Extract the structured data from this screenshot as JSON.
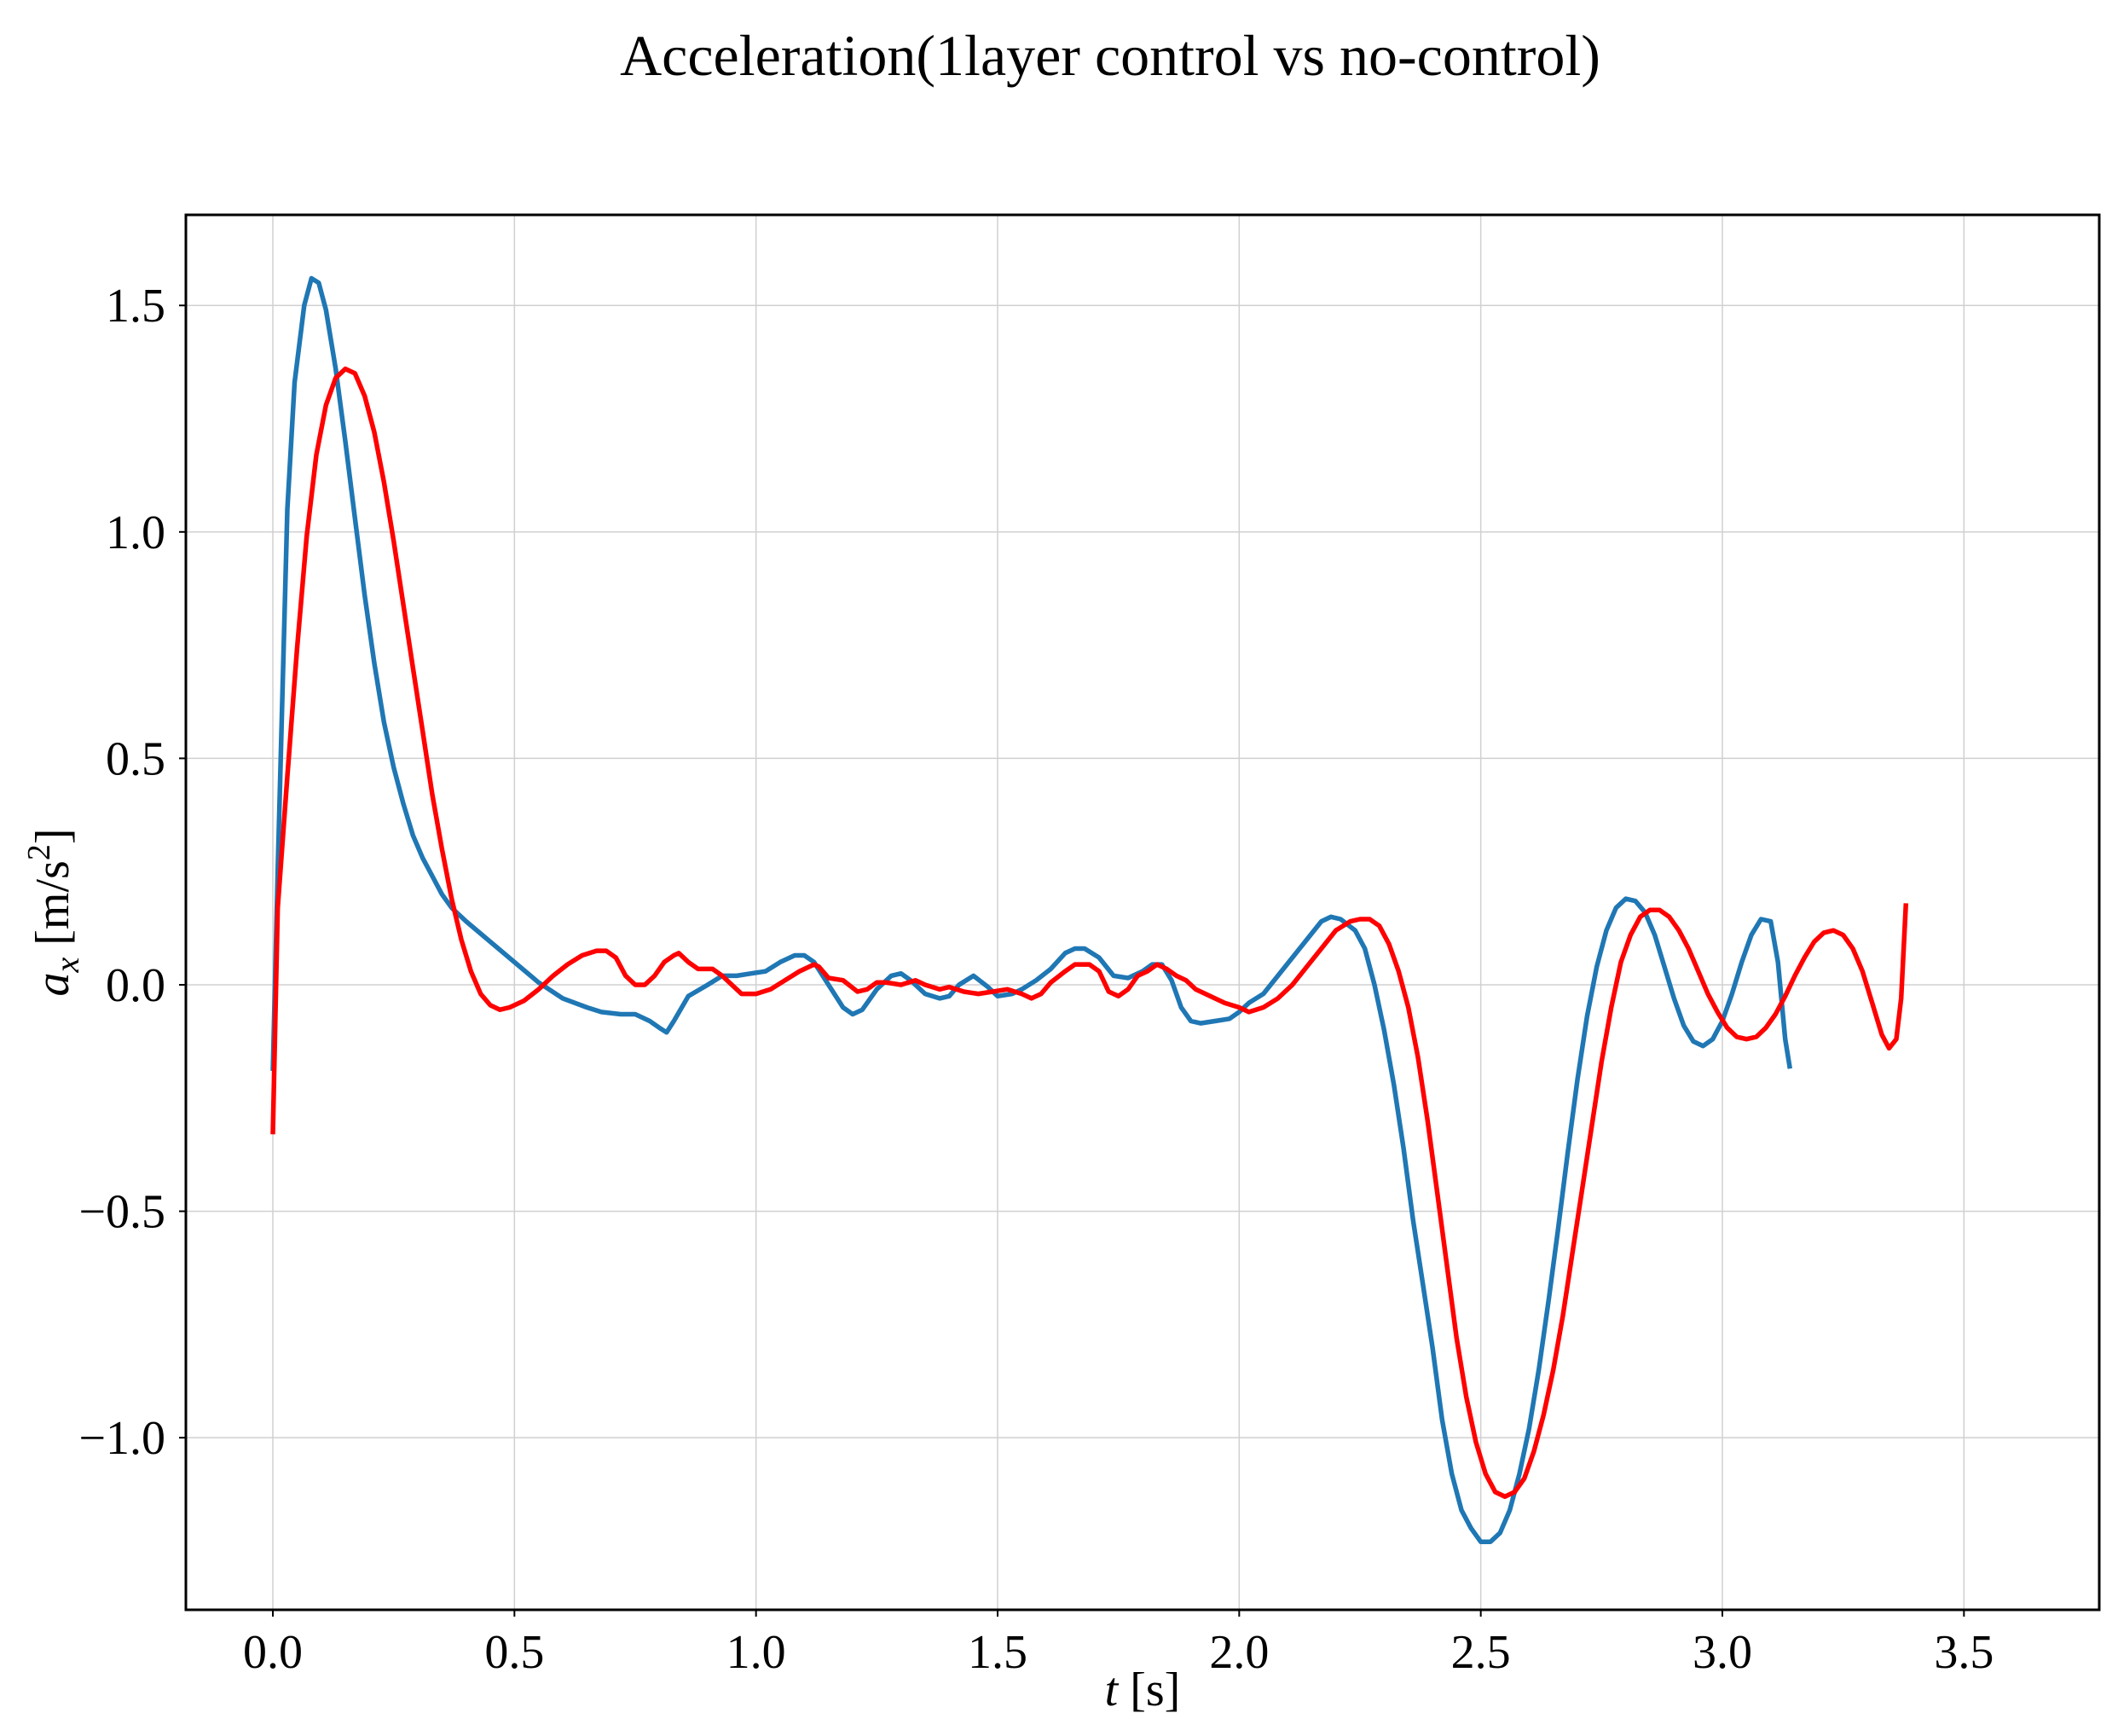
{
  "chart_data": {
    "type": "line",
    "title": "Acceleration(1layer control vs no-control)",
    "xlabel": {
      "var": "t",
      "unit": "[s]"
    },
    "ylabel": {
      "var": "a",
      "sub": "x",
      "unit_pre": "[m/s",
      "unit_sup": "2",
      "unit_post": "]"
    },
    "xlim": [
      -0.18,
      3.78
    ],
    "ylim": [
      -1.38,
      1.7
    ],
    "xticks": [
      0.0,
      0.5,
      1.0,
      1.5,
      2.0,
      2.5,
      3.0,
      3.5
    ],
    "xtick_labels": [
      "0.0",
      "0.5",
      "1.0",
      "1.5",
      "2.0",
      "2.5",
      "3.0",
      "3.5"
    ],
    "yticks": [
      1.5,
      1.0,
      0.5,
      0.0,
      -0.5,
      -1.0
    ],
    "ytick_labels": [
      "1.5",
      "1.0",
      "0.5",
      "0.0",
      "−0.5",
      "−1.0"
    ],
    "grid": true,
    "legend": "none",
    "series": [
      {
        "color": "#1f77b4",
        "points": [
          [
            0.0,
            -0.19
          ],
          [
            0.01,
            0.25
          ],
          [
            0.03,
            1.05
          ],
          [
            0.045,
            1.33
          ],
          [
            0.065,
            1.5
          ],
          [
            0.08,
            1.56
          ],
          [
            0.095,
            1.55
          ],
          [
            0.11,
            1.49
          ],
          [
            0.13,
            1.36
          ],
          [
            0.15,
            1.2
          ],
          [
            0.17,
            1.03
          ],
          [
            0.19,
            0.86
          ],
          [
            0.21,
            0.71
          ],
          [
            0.23,
            0.58
          ],
          [
            0.25,
            0.48
          ],
          [
            0.27,
            0.4
          ],
          [
            0.29,
            0.33
          ],
          [
            0.31,
            0.28
          ],
          [
            0.33,
            0.24
          ],
          [
            0.35,
            0.2
          ],
          [
            0.37,
            0.17
          ],
          [
            0.4,
            0.14
          ],
          [
            0.45,
            0.095
          ],
          [
            0.5,
            0.05
          ],
          [
            0.55,
            0.005
          ],
          [
            0.6,
            -0.03
          ],
          [
            0.65,
            -0.05
          ],
          [
            0.68,
            -0.06
          ],
          [
            0.72,
            -0.065
          ],
          [
            0.75,
            -0.065
          ],
          [
            0.78,
            -0.08
          ],
          [
            0.8,
            -0.095
          ],
          [
            0.815,
            -0.105
          ],
          [
            0.83,
            -0.08
          ],
          [
            0.86,
            -0.025
          ],
          [
            0.9,
            0.0
          ],
          [
            0.93,
            0.02
          ],
          [
            0.96,
            0.02
          ],
          [
            0.99,
            0.025
          ],
          [
            1.02,
            0.03
          ],
          [
            1.05,
            0.05
          ],
          [
            1.08,
            0.065
          ],
          [
            1.1,
            0.065
          ],
          [
            1.12,
            0.05
          ],
          [
            1.15,
            0.0
          ],
          [
            1.18,
            -0.05
          ],
          [
            1.2,
            -0.065
          ],
          [
            1.22,
            -0.055
          ],
          [
            1.25,
            -0.01
          ],
          [
            1.28,
            0.02
          ],
          [
            1.3,
            0.025
          ],
          [
            1.32,
            0.01
          ],
          [
            1.35,
            -0.02
          ],
          [
            1.38,
            -0.03
          ],
          [
            1.4,
            -0.025
          ],
          [
            1.42,
            0.0
          ],
          [
            1.45,
            0.02
          ],
          [
            1.48,
            -0.005
          ],
          [
            1.5,
            -0.025
          ],
          [
            1.53,
            -0.02
          ],
          [
            1.55,
            -0.01
          ],
          [
            1.58,
            0.01
          ],
          [
            1.61,
            0.035
          ],
          [
            1.64,
            0.07
          ],
          [
            1.66,
            0.08
          ],
          [
            1.68,
            0.08
          ],
          [
            1.71,
            0.06
          ],
          [
            1.74,
            0.02
          ],
          [
            1.77,
            0.015
          ],
          [
            1.8,
            0.03
          ],
          [
            1.82,
            0.045
          ],
          [
            1.84,
            0.045
          ],
          [
            1.86,
            0.01
          ],
          [
            1.88,
            -0.05
          ],
          [
            1.9,
            -0.08
          ],
          [
            1.92,
            -0.085
          ],
          [
            1.95,
            -0.08
          ],
          [
            1.98,
            -0.075
          ],
          [
            2.0,
            -0.06
          ],
          [
            2.02,
            -0.04
          ],
          [
            2.05,
            -0.02
          ],
          [
            2.08,
            0.02
          ],
          [
            2.11,
            0.06
          ],
          [
            2.14,
            0.1
          ],
          [
            2.17,
            0.14
          ],
          [
            2.19,
            0.15
          ],
          [
            2.21,
            0.145
          ],
          [
            2.24,
            0.12
          ],
          [
            2.26,
            0.08
          ],
          [
            2.28,
            0.0
          ],
          [
            2.3,
            -0.1
          ],
          [
            2.32,
            -0.22
          ],
          [
            2.34,
            -0.36
          ],
          [
            2.36,
            -0.52
          ],
          [
            2.38,
            -0.66
          ],
          [
            2.4,
            -0.8
          ],
          [
            2.42,
            -0.96
          ],
          [
            2.44,
            -1.08
          ],
          [
            2.46,
            -1.16
          ],
          [
            2.48,
            -1.2
          ],
          [
            2.5,
            -1.23
          ],
          [
            2.52,
            -1.23
          ],
          [
            2.54,
            -1.21
          ],
          [
            2.56,
            -1.16
          ],
          [
            2.58,
            -1.08
          ],
          [
            2.6,
            -0.98
          ],
          [
            2.62,
            -0.85
          ],
          [
            2.64,
            -0.7
          ],
          [
            2.66,
            -0.54
          ],
          [
            2.68,
            -0.37
          ],
          [
            2.7,
            -0.21
          ],
          [
            2.72,
            -0.07
          ],
          [
            2.74,
            0.04
          ],
          [
            2.76,
            0.12
          ],
          [
            2.78,
            0.17
          ],
          [
            2.8,
            0.19
          ],
          [
            2.82,
            0.185
          ],
          [
            2.84,
            0.16
          ],
          [
            2.86,
            0.11
          ],
          [
            2.88,
            0.04
          ],
          [
            2.9,
            -0.03
          ],
          [
            2.92,
            -0.09
          ],
          [
            2.94,
            -0.125
          ],
          [
            2.96,
            -0.135
          ],
          [
            2.98,
            -0.12
          ],
          [
            3.0,
            -0.08
          ],
          [
            3.02,
            -0.02
          ],
          [
            3.04,
            0.05
          ],
          [
            3.06,
            0.11
          ],
          [
            3.08,
            0.145
          ],
          [
            3.1,
            0.14
          ],
          [
            3.115,
            0.05
          ],
          [
            3.13,
            -0.12
          ],
          [
            3.14,
            -0.185
          ]
        ]
      },
      {
        "color": "#ff0000",
        "points": [
          [
            0.0,
            -0.33
          ],
          [
            0.01,
            0.17
          ],
          [
            0.03,
            0.46
          ],
          [
            0.05,
            0.74
          ],
          [
            0.07,
            0.99
          ],
          [
            0.09,
            1.17
          ],
          [
            0.11,
            1.28
          ],
          [
            0.13,
            1.34
          ],
          [
            0.15,
            1.36
          ],
          [
            0.17,
            1.35
          ],
          [
            0.19,
            1.3
          ],
          [
            0.21,
            1.22
          ],
          [
            0.23,
            1.11
          ],
          [
            0.25,
            0.98
          ],
          [
            0.27,
            0.84
          ],
          [
            0.29,
            0.7
          ],
          [
            0.31,
            0.56
          ],
          [
            0.33,
            0.42
          ],
          [
            0.35,
            0.3
          ],
          [
            0.37,
            0.19
          ],
          [
            0.39,
            0.1
          ],
          [
            0.41,
            0.03
          ],
          [
            0.43,
            -0.02
          ],
          [
            0.45,
            -0.045
          ],
          [
            0.47,
            -0.055
          ],
          [
            0.49,
            -0.05
          ],
          [
            0.52,
            -0.035
          ],
          [
            0.55,
            -0.01
          ],
          [
            0.58,
            0.02
          ],
          [
            0.61,
            0.045
          ],
          [
            0.64,
            0.065
          ],
          [
            0.67,
            0.075
          ],
          [
            0.69,
            0.075
          ],
          [
            0.71,
            0.06
          ],
          [
            0.73,
            0.02
          ],
          [
            0.75,
            0.0
          ],
          [
            0.77,
            0.0
          ],
          [
            0.79,
            0.02
          ],
          [
            0.81,
            0.05
          ],
          [
            0.83,
            0.065
          ],
          [
            0.84,
            0.07
          ],
          [
            0.86,
            0.05
          ],
          [
            0.88,
            0.035
          ],
          [
            0.91,
            0.035
          ],
          [
            0.93,
            0.02
          ],
          [
            0.95,
            0.0
          ],
          [
            0.97,
            -0.02
          ],
          [
            1.0,
            -0.02
          ],
          [
            1.03,
            -0.01
          ],
          [
            1.06,
            0.01
          ],
          [
            1.09,
            0.03
          ],
          [
            1.12,
            0.045
          ],
          [
            1.13,
            0.04
          ],
          [
            1.15,
            0.015
          ],
          [
            1.18,
            0.01
          ],
          [
            1.21,
            -0.015
          ],
          [
            1.23,
            -0.01
          ],
          [
            1.25,
            0.005
          ],
          [
            1.27,
            0.005
          ],
          [
            1.3,
            0.0
          ],
          [
            1.33,
            0.01
          ],
          [
            1.35,
            0.0
          ],
          [
            1.38,
            -0.01
          ],
          [
            1.4,
            -0.005
          ],
          [
            1.43,
            -0.015
          ],
          [
            1.46,
            -0.02
          ],
          [
            1.49,
            -0.015
          ],
          [
            1.52,
            -0.01
          ],
          [
            1.55,
            -0.02
          ],
          [
            1.57,
            -0.03
          ],
          [
            1.59,
            -0.02
          ],
          [
            1.61,
            0.005
          ],
          [
            1.64,
            0.03
          ],
          [
            1.66,
            0.045
          ],
          [
            1.69,
            0.045
          ],
          [
            1.71,
            0.03
          ],
          [
            1.73,
            -0.015
          ],
          [
            1.75,
            -0.025
          ],
          [
            1.77,
            -0.01
          ],
          [
            1.79,
            0.02
          ],
          [
            1.81,
            0.03
          ],
          [
            1.83,
            0.045
          ],
          [
            1.85,
            0.035
          ],
          [
            1.87,
            0.02
          ],
          [
            1.89,
            0.01
          ],
          [
            1.91,
            -0.01
          ],
          [
            1.94,
            -0.025
          ],
          [
            1.97,
            -0.04
          ],
          [
            2.0,
            -0.05
          ],
          [
            2.02,
            -0.06
          ],
          [
            2.05,
            -0.05
          ],
          [
            2.08,
            -0.03
          ],
          [
            2.11,
            0.0
          ],
          [
            2.14,
            0.04
          ],
          [
            2.17,
            0.08
          ],
          [
            2.2,
            0.12
          ],
          [
            2.23,
            0.14
          ],
          [
            2.25,
            0.145
          ],
          [
            2.27,
            0.145
          ],
          [
            2.29,
            0.13
          ],
          [
            2.31,
            0.09
          ],
          [
            2.33,
            0.03
          ],
          [
            2.35,
            -0.05
          ],
          [
            2.37,
            -0.16
          ],
          [
            2.39,
            -0.3
          ],
          [
            2.41,
            -0.46
          ],
          [
            2.43,
            -0.62
          ],
          [
            2.45,
            -0.78
          ],
          [
            2.47,
            -0.91
          ],
          [
            2.49,
            -1.01
          ],
          [
            2.51,
            -1.08
          ],
          [
            2.53,
            -1.12
          ],
          [
            2.55,
            -1.13
          ],
          [
            2.57,
            -1.12
          ],
          [
            2.59,
            -1.09
          ],
          [
            2.61,
            -1.03
          ],
          [
            2.63,
            -0.95
          ],
          [
            2.65,
            -0.85
          ],
          [
            2.67,
            -0.73
          ],
          [
            2.69,
            -0.59
          ],
          [
            2.71,
            -0.45
          ],
          [
            2.73,
            -0.31
          ],
          [
            2.75,
            -0.17
          ],
          [
            2.77,
            -0.05
          ],
          [
            2.79,
            0.05
          ],
          [
            2.81,
            0.11
          ],
          [
            2.83,
            0.15
          ],
          [
            2.85,
            0.165
          ],
          [
            2.87,
            0.165
          ],
          [
            2.89,
            0.15
          ],
          [
            2.91,
            0.12
          ],
          [
            2.93,
            0.08
          ],
          [
            2.95,
            0.03
          ],
          [
            2.97,
            -0.02
          ],
          [
            2.99,
            -0.06
          ],
          [
            3.01,
            -0.095
          ],
          [
            3.03,
            -0.115
          ],
          [
            3.05,
            -0.12
          ],
          [
            3.07,
            -0.115
          ],
          [
            3.09,
            -0.095
          ],
          [
            3.11,
            -0.065
          ],
          [
            3.13,
            -0.025
          ],
          [
            3.15,
            0.02
          ],
          [
            3.17,
            0.06
          ],
          [
            3.19,
            0.095
          ],
          [
            3.21,
            0.115
          ],
          [
            3.23,
            0.12
          ],
          [
            3.25,
            0.11
          ],
          [
            3.27,
            0.08
          ],
          [
            3.29,
            0.03
          ],
          [
            3.31,
            -0.04
          ],
          [
            3.33,
            -0.11
          ],
          [
            3.345,
            -0.14
          ],
          [
            3.36,
            -0.12
          ],
          [
            3.37,
            -0.03
          ],
          [
            3.38,
            0.18
          ]
        ]
      }
    ]
  }
}
